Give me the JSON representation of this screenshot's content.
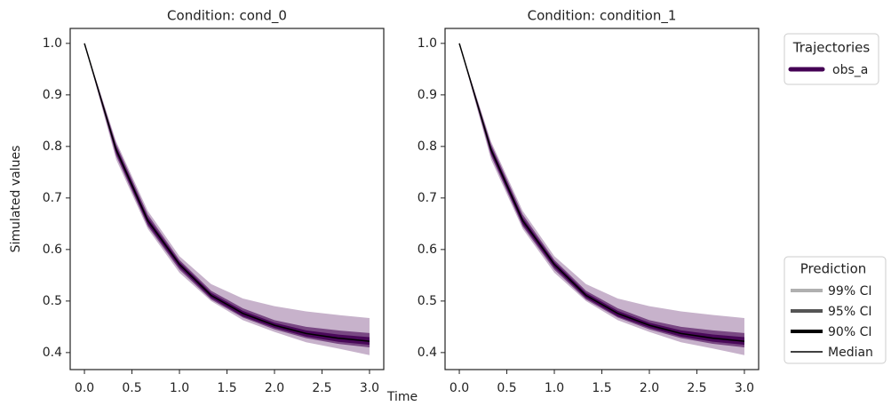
{
  "chart_data": [
    {
      "type": "line",
      "title": "Condition: cond_0",
      "x": [
        0,
        0.333,
        0.667,
        1.0,
        1.333,
        1.667,
        2.0,
        2.333,
        2.667,
        3.0
      ],
      "xlim": [
        -0.15,
        3.15
      ],
      "xticks": [
        0.0,
        0.5,
        1.0,
        1.5,
        2.0,
        2.5,
        3.0
      ],
      "xtick_labels": [
        "0.0",
        "0.5",
        "1.0",
        "1.5",
        "2.0",
        "2.5",
        "3.0"
      ],
      "ylim": [
        0.367,
        1.029
      ],
      "yticks": [
        0.4,
        0.5,
        0.6,
        0.7,
        0.8,
        0.9,
        1.0
      ],
      "ytick_labels": [
        "0.4",
        "0.5",
        "0.6",
        "0.7",
        "0.8",
        "0.9",
        "1.0"
      ],
      "series": [
        {
          "name": "obs_a",
          "color": "#440154",
          "values": [
            1.0,
            0.794,
            0.656,
            0.571,
            0.511,
            0.476,
            0.453,
            0.437,
            0.428,
            0.422
          ],
          "intervals": [
            {
              "opacity": 0.3,
              "lower": [
                1.0,
                0.775,
                0.64,
                0.555,
                0.5,
                0.463,
                0.44,
                0.42,
                0.408,
                0.395
              ],
              "upper": [
                1.0,
                0.81,
                0.675,
                0.587,
                0.533,
                0.505,
                0.49,
                0.48,
                0.473,
                0.467
              ]
            },
            {
              "opacity": 0.6,
              "lower": [
                1.0,
                0.782,
                0.645,
                0.561,
                0.503,
                0.468,
                0.445,
                0.428,
                0.417,
                0.41
              ],
              "upper": [
                1.0,
                0.805,
                0.668,
                0.58,
                0.52,
                0.486,
                0.463,
                0.45,
                0.443,
                0.438
              ]
            },
            {
              "opacity": 0.9,
              "lower": [
                1.0,
                0.787,
                0.649,
                0.565,
                0.506,
                0.47,
                0.448,
                0.431,
                0.421,
                0.415
              ],
              "upper": [
                1.0,
                0.8,
                0.662,
                0.576,
                0.516,
                0.481,
                0.458,
                0.443,
                0.435,
                0.43
              ]
            }
          ]
        }
      ]
    },
    {
      "type": "line",
      "title": "Condition: condition_1",
      "x": [
        0,
        0.333,
        0.667,
        1.0,
        1.333,
        1.667,
        2.0,
        2.333,
        2.667,
        3.0
      ],
      "xlim": [
        -0.15,
        3.15
      ],
      "xticks": [
        0.0,
        0.5,
        1.0,
        1.5,
        2.0,
        2.5,
        3.0
      ],
      "xtick_labels": [
        "0.0",
        "0.5",
        "1.0",
        "1.5",
        "2.0",
        "2.5",
        "3.0"
      ],
      "ylim": [
        0.367,
        1.029
      ],
      "yticks": [
        0.4,
        0.5,
        0.6,
        0.7,
        0.8,
        0.9,
        1.0
      ],
      "ytick_labels": [
        "0.4",
        "0.5",
        "0.6",
        "0.7",
        "0.8",
        "0.9",
        "1.0"
      ],
      "series": [
        {
          "name": "obs_a",
          "color": "#440154",
          "values": [
            1.0,
            0.794,
            0.656,
            0.571,
            0.511,
            0.476,
            0.453,
            0.437,
            0.428,
            0.422
          ],
          "intervals": [
            {
              "opacity": 0.3,
              "lower": [
                1.0,
                0.775,
                0.64,
                0.555,
                0.5,
                0.463,
                0.44,
                0.42,
                0.408,
                0.395
              ],
              "upper": [
                1.0,
                0.81,
                0.675,
                0.587,
                0.533,
                0.505,
                0.49,
                0.48,
                0.473,
                0.467
              ]
            },
            {
              "opacity": 0.6,
              "lower": [
                1.0,
                0.782,
                0.645,
                0.561,
                0.503,
                0.468,
                0.445,
                0.428,
                0.417,
                0.41
              ],
              "upper": [
                1.0,
                0.805,
                0.668,
                0.58,
                0.52,
                0.486,
                0.463,
                0.45,
                0.443,
                0.438
              ]
            },
            {
              "opacity": 0.9,
              "lower": [
                1.0,
                0.787,
                0.649,
                0.565,
                0.506,
                0.47,
                0.448,
                0.431,
                0.421,
                0.415
              ],
              "upper": [
                1.0,
                0.8,
                0.662,
                0.576,
                0.516,
                0.481,
                0.458,
                0.443,
                0.435,
                0.43
              ]
            }
          ]
        }
      ]
    }
  ],
  "figure": {
    "xlabel": "Time",
    "ylabel": "Simulated values",
    "trajectories_legend": {
      "title": "Trajectories"
    },
    "prediction_legend": {
      "title": "Prediction",
      "items": [
        {
          "label": "99% CI",
          "color": "#b0b0b0",
          "width": 4
        },
        {
          "label": "95% CI",
          "color": "#555555",
          "width": 4
        },
        {
          "label": "90% CI",
          "color": "#000000",
          "width": 4
        },
        {
          "label": "Median",
          "color": "#000000",
          "width": 1.5
        }
      ]
    }
  }
}
